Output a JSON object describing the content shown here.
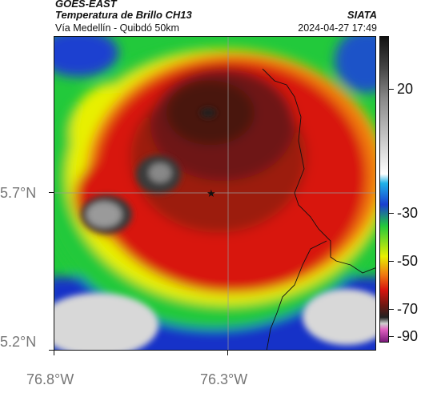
{
  "header": {
    "satellite": "GOES-EAST",
    "product": "Temperatura de Brillo CH13",
    "route": "Vía Medellín - Quibdó 50km",
    "agency": "SIATA",
    "datetime": "2024-04-27 17:49"
  },
  "axes": {
    "lat_labels": [
      "5.7°N",
      "5.2°N"
    ],
    "lon_labels": [
      "76.8°W",
      "76.3°W"
    ]
  },
  "colorbar": {
    "labels": [
      "20",
      "-30",
      "-50",
      "-70",
      "-90"
    ]
  },
  "marker": {
    "symbol": "★"
  },
  "colors": {
    "red": "#d9140f",
    "dark_red": "#7a1a14",
    "green": "#27d13a",
    "yellow": "#eef200",
    "blue": "#1434c8",
    "gray": "#d6d6d6"
  }
}
